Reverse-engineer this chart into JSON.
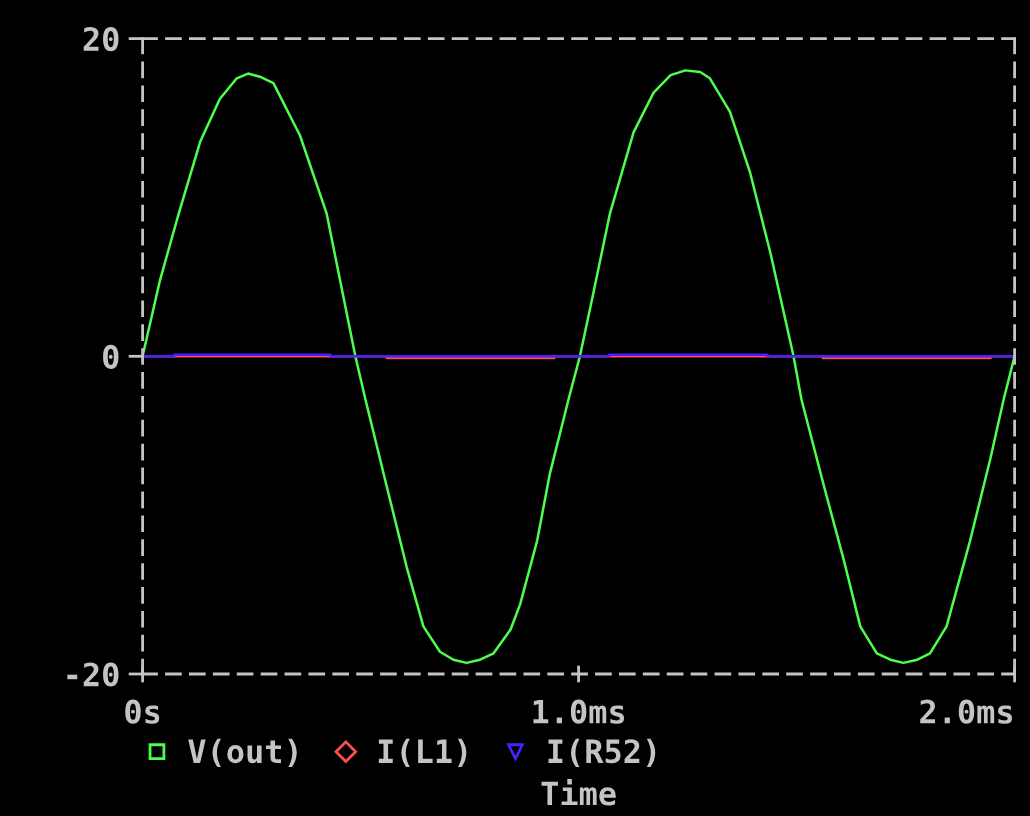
{
  "chart_data": {
    "type": "line",
    "xlabel": "Time",
    "xlim": [
      0,
      2
    ],
    "ylim": [
      -20,
      20
    ],
    "xticks": [
      {
        "value": 0,
        "label": "0s"
      },
      {
        "value": 1.0,
        "label": "1.0ms"
      },
      {
        "value": 2.0,
        "label": "2.0ms"
      }
    ],
    "yticks": [
      -20,
      0,
      20
    ],
    "legend": "bottom",
    "series": [
      {
        "name": "V(out)",
        "color": "#4cff4c",
        "x": [
          0,
          0.04,
          0.083,
          0.132,
          0.177,
          0.216,
          0.242,
          0.269,
          0.3,
          0.361,
          0.422,
          0.488,
          0.511,
          0.56,
          0.606,
          0.644,
          0.682,
          0.713,
          0.743,
          0.774,
          0.805,
          0.844,
          0.866,
          0.905,
          0.934,
          0.977,
          1.003,
          1.034,
          1.072,
          1.126,
          1.172,
          1.211,
          1.245,
          1.279,
          1.301,
          1.347,
          1.393,
          1.44,
          1.493,
          1.511,
          1.563,
          1.608,
          1.646,
          1.684,
          1.715,
          1.745,
          1.777,
          1.806,
          1.844,
          1.898,
          1.944,
          1.975,
          2.0
        ],
        "values": [
          0,
          4.8,
          9.0,
          13.5,
          16.2,
          17.5,
          17.8,
          17.6,
          17.2,
          13.9,
          9.0,
          0,
          -2.7,
          -8.2,
          -13.3,
          -17.0,
          -18.6,
          -19.1,
          -19.3,
          -19.1,
          -18.7,
          -17.2,
          -15.6,
          -11.6,
          -7.4,
          -2.7,
          0,
          4.0,
          9.0,
          14.1,
          16.6,
          17.7,
          18.0,
          17.9,
          17.5,
          15.4,
          11.6,
          6.5,
          0,
          -2.7,
          -8.2,
          -12.8,
          -17.0,
          -18.7,
          -19.1,
          -19.3,
          -19.1,
          -18.7,
          -17.0,
          -11.6,
          -6.5,
          -2.7,
          0
        ]
      },
      {
        "name": "I(L1)",
        "color": "#ff4d4d",
        "x": [
          0,
          0.56,
          0.56,
          0.944,
          0.944,
          1.56,
          1.56,
          1.945,
          1.945,
          2.0
        ],
        "values": [
          0,
          0,
          -0.1,
          -0.1,
          0,
          0,
          -0.1,
          -0.1,
          0,
          0
        ]
      },
      {
        "name": "I(R52)",
        "color": "#4b1eff",
        "x": [
          0,
          0.072,
          0.072,
          0.431,
          0.431,
          1.07,
          1.07,
          1.433,
          1.433,
          2.0
        ],
        "values": [
          0,
          0,
          0.1,
          0.1,
          0,
          0,
          0.1,
          0.1,
          0,
          0
        ]
      }
    ]
  }
}
